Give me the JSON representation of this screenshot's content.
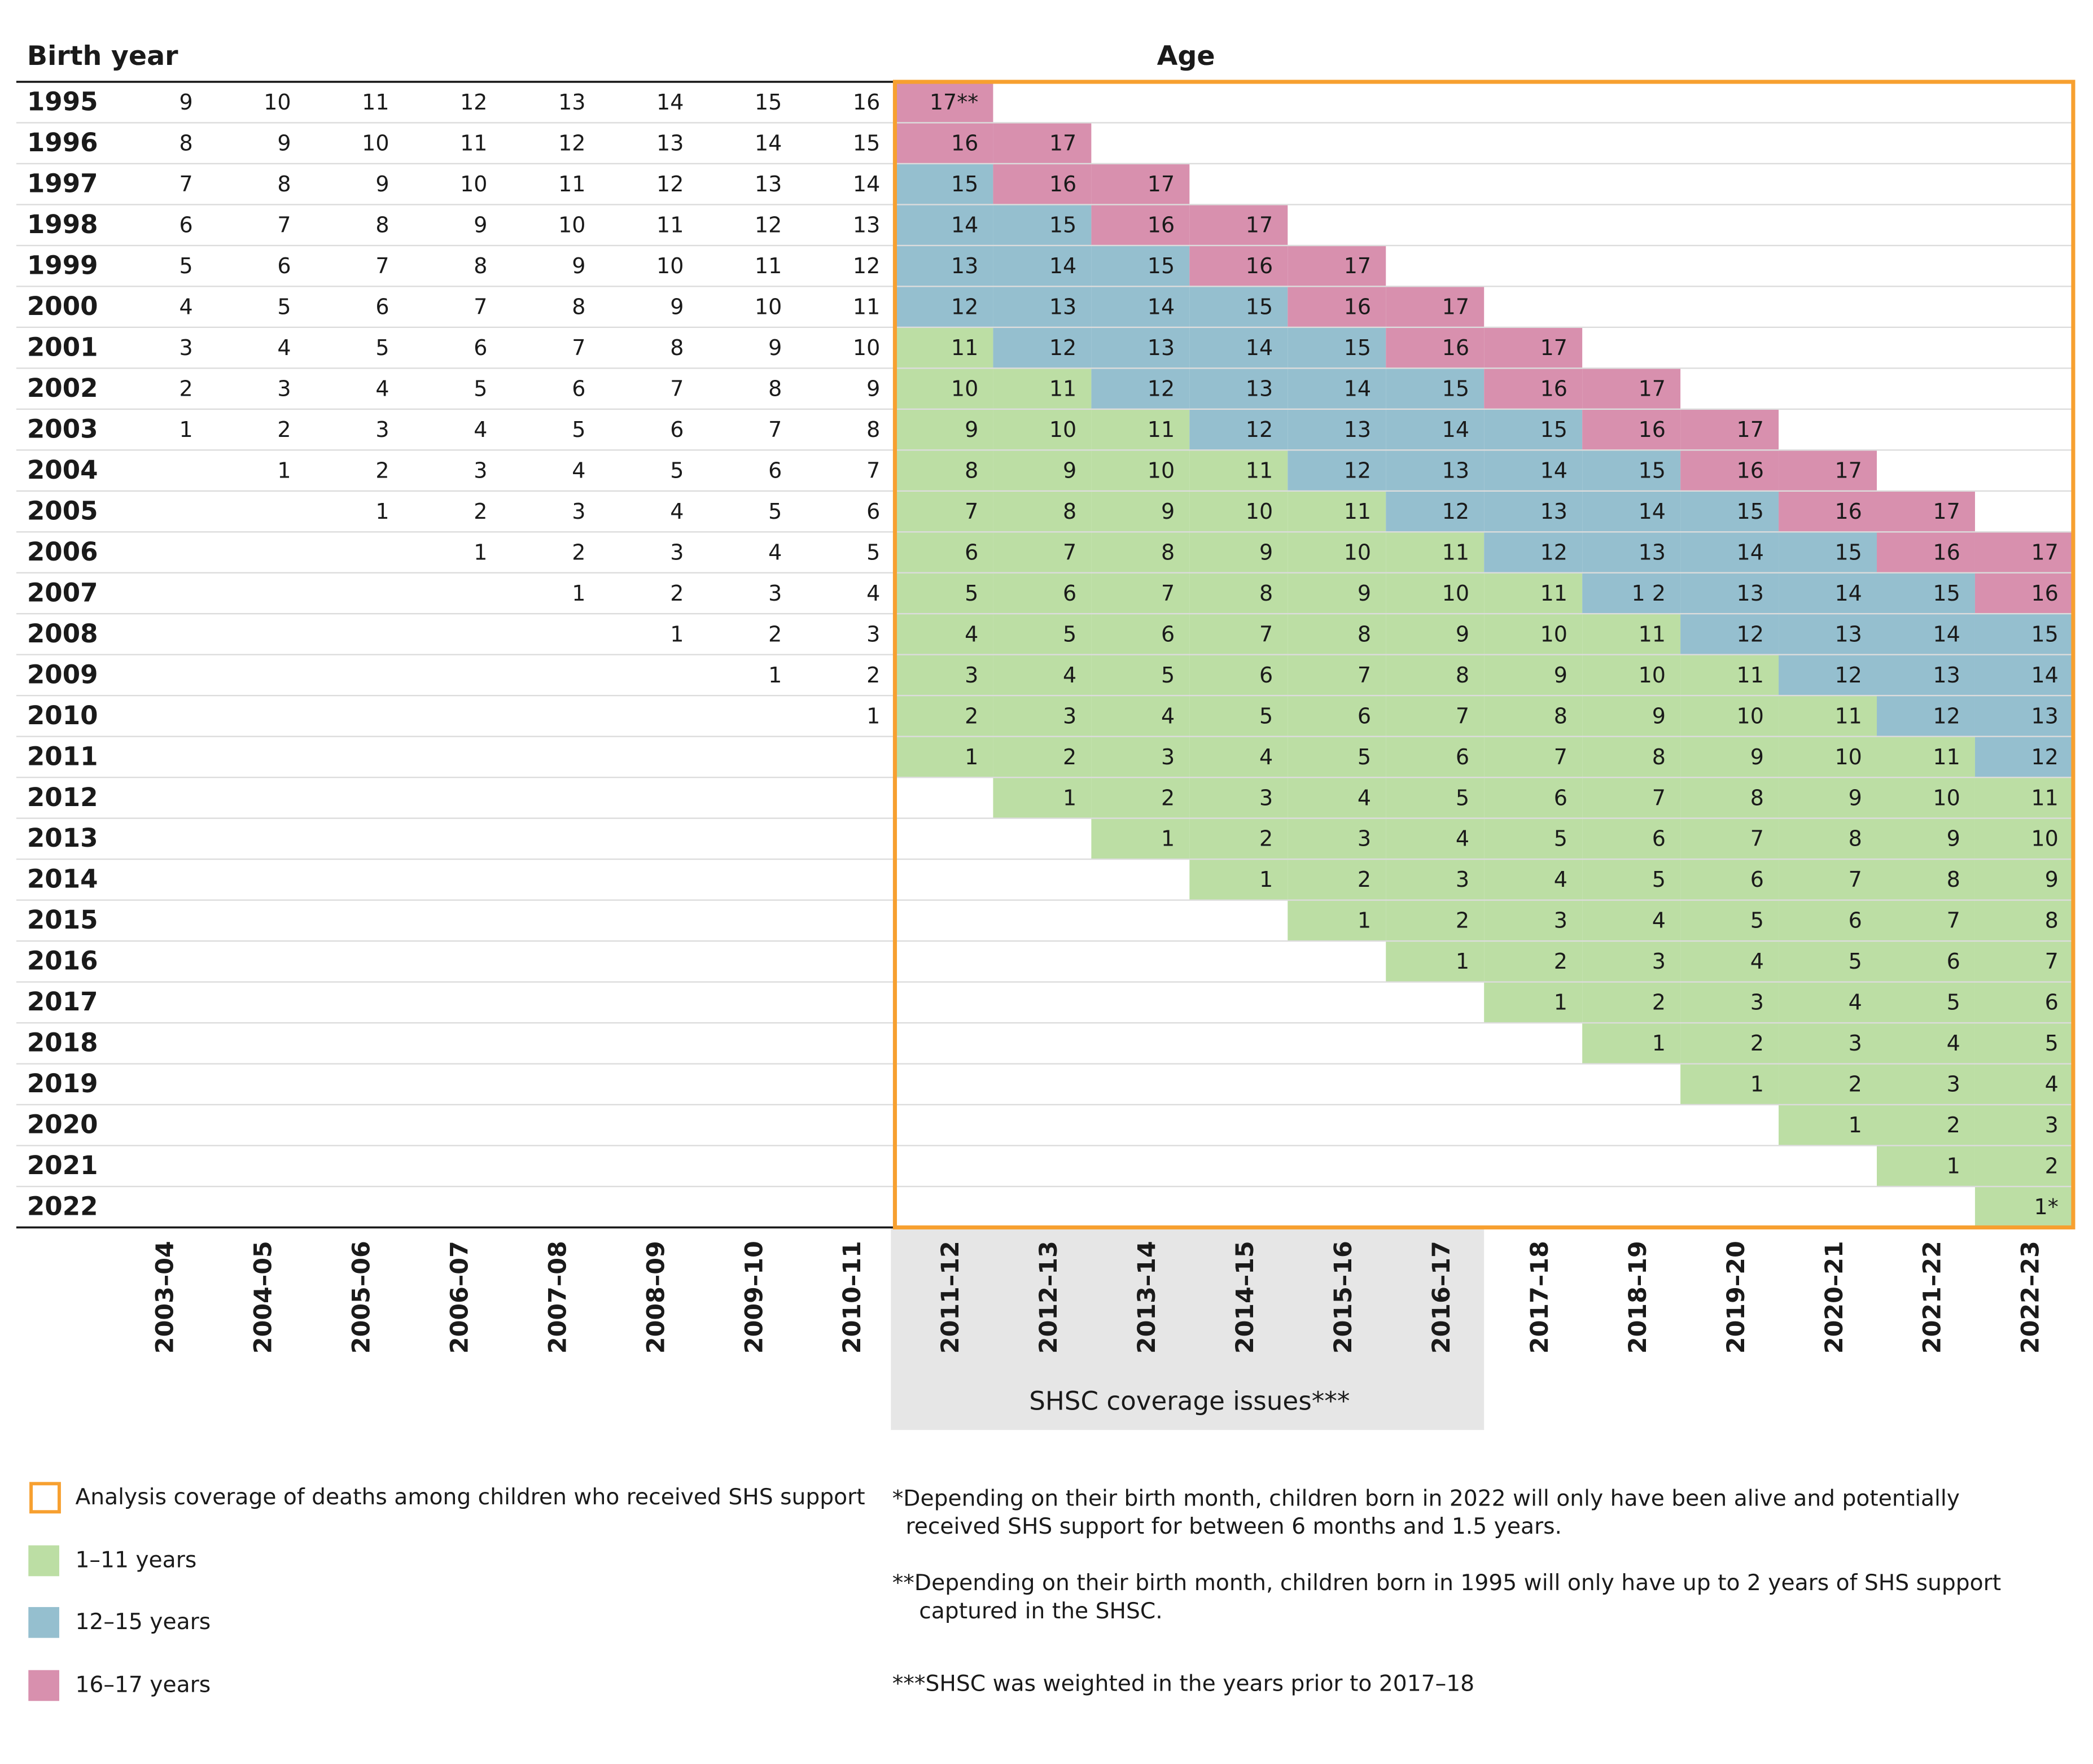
{
  "header": {
    "row_title": "Birth year",
    "column_title": "Age"
  },
  "columns": [
    "2003–04",
    "2004–05",
    "2005–06",
    "2006–07",
    "2007–08",
    "2008–09",
    "2009–10",
    "2010–11",
    "2011–12",
    "2012–13",
    "2013–14",
    "2014–15",
    "2015–16",
    "2016–17",
    "2017–18",
    "2018–19",
    "2019–20",
    "2020–21",
    "2021–22",
    "2022–23"
  ],
  "rows": [
    {
      "year": "1995",
      "cells": [
        "9",
        "10",
        "11",
        "12",
        "13",
        "14",
        "15",
        "16",
        "17**",
        null,
        null,
        null,
        null,
        null,
        null,
        null,
        null,
        null,
        null,
        null
      ]
    },
    {
      "year": "1996",
      "cells": [
        "8",
        "9",
        "10",
        "11",
        "12",
        "13",
        "14",
        "15",
        "16",
        "17",
        null,
        null,
        null,
        null,
        null,
        null,
        null,
        null,
        null,
        null
      ]
    },
    {
      "year": "1997",
      "cells": [
        "7",
        "8",
        "9",
        "10",
        "11",
        "12",
        "13",
        "14",
        "15",
        "16",
        "17",
        null,
        null,
        null,
        null,
        null,
        null,
        null,
        null,
        null
      ]
    },
    {
      "year": "1998",
      "cells": [
        "6",
        "7",
        "8",
        "9",
        "10",
        "11",
        "12",
        "13",
        "14",
        "15",
        "16",
        "17",
        null,
        null,
        null,
        null,
        null,
        null,
        null,
        null
      ]
    },
    {
      "year": "1999",
      "cells": [
        "5",
        "6",
        "7",
        "8",
        "9",
        "10",
        "11",
        "12",
        "13",
        "14",
        "15",
        "16",
        "17",
        null,
        null,
        null,
        null,
        null,
        null,
        null
      ]
    },
    {
      "year": "2000",
      "cells": [
        "4",
        "5",
        "6",
        "7",
        "8",
        "9",
        "10",
        "11",
        "12",
        "13",
        "14",
        "15",
        "16",
        "17",
        null,
        null,
        null,
        null,
        null,
        null
      ]
    },
    {
      "year": "2001",
      "cells": [
        "3",
        "4",
        "5",
        "6",
        "7",
        "8",
        "9",
        "10",
        "11",
        "12",
        "13",
        "14",
        "15",
        "16",
        "17",
        null,
        null,
        null,
        null,
        null
      ]
    },
    {
      "year": "2002",
      "cells": [
        "2",
        "3",
        "4",
        "5",
        "6",
        "7",
        "8",
        "9",
        "10",
        "11",
        "12",
        "13",
        "14",
        "15",
        "16",
        "17",
        null,
        null,
        null,
        null
      ]
    },
    {
      "year": "2003",
      "cells": [
        "1",
        "2",
        "3",
        "4",
        "5",
        "6",
        "7",
        "8",
        "9",
        "10",
        "11",
        "12",
        "13",
        "14",
        "15",
        "16",
        "17",
        null,
        null,
        null
      ]
    },
    {
      "year": "2004",
      "cells": [
        null,
        "1",
        "2",
        "3",
        "4",
        "5",
        "6",
        "7",
        "8",
        "9",
        "10",
        "11",
        "12",
        "13",
        "14",
        "15",
        "16",
        "17",
        null,
        null
      ]
    },
    {
      "year": "2005",
      "cells": [
        null,
        null,
        "1",
        "2",
        "3",
        "4",
        "5",
        "6",
        "7",
        "8",
        "9",
        "10",
        "11",
        "12",
        "13",
        "14",
        "15",
        "16",
        "17",
        null
      ]
    },
    {
      "year": "2006",
      "cells": [
        null,
        null,
        null,
        "1",
        "2",
        "3",
        "4",
        "5",
        "6",
        "7",
        "8",
        "9",
        "10",
        "11",
        "12",
        "13",
        "14",
        "15",
        "16",
        "17"
      ]
    },
    {
      "year": "2007",
      "cells": [
        null,
        null,
        null,
        null,
        "1",
        "2",
        "3",
        "4",
        "5",
        "6",
        "7",
        "8",
        "9",
        "10",
        "11",
        "1 2",
        "13",
        "14",
        "15",
        "16"
      ]
    },
    {
      "year": "2008",
      "cells": [
        null,
        null,
        null,
        null,
        null,
        "1",
        "2",
        "3",
        "4",
        "5",
        "6",
        "7",
        "8",
        "9",
        "10",
        "11",
        "12",
        "13",
        "14",
        "15"
      ]
    },
    {
      "year": "2009",
      "cells": [
        null,
        null,
        null,
        null,
        null,
        null,
        "1",
        "2",
        "3",
        "4",
        "5",
        "6",
        "7",
        "8",
        "9",
        "10",
        "11",
        "12",
        "13",
        "14"
      ]
    },
    {
      "year": "2010",
      "cells": [
        null,
        null,
        null,
        null,
        null,
        null,
        null,
        "1",
        "2",
        "3",
        "4",
        "5",
        "6",
        "7",
        "8",
        "9",
        "10",
        "11",
        "12",
        "13"
      ]
    },
    {
      "year": "2011",
      "cells": [
        null,
        null,
        null,
        null,
        null,
        null,
        null,
        null,
        "1",
        "2",
        "3",
        "4",
        "5",
        "6",
        "7",
        "8",
        "9",
        "10",
        "11",
        "12"
      ]
    },
    {
      "year": "2012",
      "cells": [
        null,
        null,
        null,
        null,
        null,
        null,
        null,
        null,
        null,
        "1",
        "2",
        "3",
        "4",
        "5",
        "6",
        "7",
        "8",
        "9",
        "10",
        "11"
      ]
    },
    {
      "year": "2013",
      "cells": [
        null,
        null,
        null,
        null,
        null,
        null,
        null,
        null,
        null,
        null,
        "1",
        "2",
        "3",
        "4",
        "5",
        "6",
        "7",
        "8",
        "9",
        "10"
      ]
    },
    {
      "year": "2014",
      "cells": [
        null,
        null,
        null,
        null,
        null,
        null,
        null,
        null,
        null,
        null,
        null,
        "1",
        "2",
        "3",
        "4",
        "5",
        "6",
        "7",
        "8",
        "9"
      ]
    },
    {
      "year": "2015",
      "cells": [
        null,
        null,
        null,
        null,
        null,
        null,
        null,
        null,
        null,
        null,
        null,
        null,
        "1",
        "2",
        "3",
        "4",
        "5",
        "6",
        "7",
        "8"
      ]
    },
    {
      "year": "2016",
      "cells": [
        null,
        null,
        null,
        null,
        null,
        null,
        null,
        null,
        null,
        null,
        null,
        null,
        null,
        "1",
        "2",
        "3",
        "4",
        "5",
        "6",
        "7"
      ]
    },
    {
      "year": "2017",
      "cells": [
        null,
        null,
        null,
        null,
        null,
        null,
        null,
        null,
        null,
        null,
        null,
        null,
        null,
        null,
        "1",
        "2",
        "3",
        "4",
        "5",
        "6"
      ]
    },
    {
      "year": "2018",
      "cells": [
        null,
        null,
        null,
        null,
        null,
        null,
        null,
        null,
        null,
        null,
        null,
        null,
        null,
        null,
        null,
        "1",
        "2",
        "3",
        "4",
        "5"
      ]
    },
    {
      "year": "2019",
      "cells": [
        null,
        null,
        null,
        null,
        null,
        null,
        null,
        null,
        null,
        null,
        null,
        null,
        null,
        null,
        null,
        null,
        "1",
        "2",
        "3",
        "4"
      ]
    },
    {
      "year": "2020",
      "cells": [
        null,
        null,
        null,
        null,
        null,
        null,
        null,
        null,
        null,
        null,
        null,
        null,
        null,
        null,
        null,
        null,
        null,
        "1",
        "2",
        "3"
      ]
    },
    {
      "year": "2021",
      "cells": [
        null,
        null,
        null,
        null,
        null,
        null,
        null,
        null,
        null,
        null,
        null,
        null,
        null,
        null,
        null,
        null,
        null,
        null,
        "1",
        "2"
      ]
    },
    {
      "year": "2022",
      "cells": [
        null,
        null,
        null,
        null,
        null,
        null,
        null,
        null,
        null,
        null,
        null,
        null,
        null,
        null,
        null,
        null,
        null,
        null,
        null,
        "1*"
      ]
    }
  ],
  "coverage": {
    "label": "Analysis coverage of deaths among children who received SHS support",
    "color": "#f7a030",
    "first_column": "2011–12"
  },
  "issues_band": {
    "label": "SHSC coverage issues***",
    "from": "2011–12",
    "to": "2016–17",
    "color": "#e6e6e6"
  },
  "legend": [
    {
      "label": "1–11 years",
      "color": "#bcdea4",
      "from": 1,
      "to": 11
    },
    {
      "label": "12–15 years",
      "color": "#95bfcf",
      "from": 12,
      "to": 15
    },
    {
      "label": "16–17 years",
      "color": "#d890ae",
      "from": 16,
      "to": 17
    }
  ],
  "footnotes": [
    [
      "*Depending on their birth month, children born in 2022 will only have been alive and potentially",
      "received SHS support for between 6 months and 1.5 years."
    ],
    [
      "**Depending on their birth month, children born in 1995 will only have up to 2 years of SHS support",
      "captured in the SHSC."
    ],
    [
      "***SHSC was weighted in the years prior to 2017–18"
    ]
  ]
}
